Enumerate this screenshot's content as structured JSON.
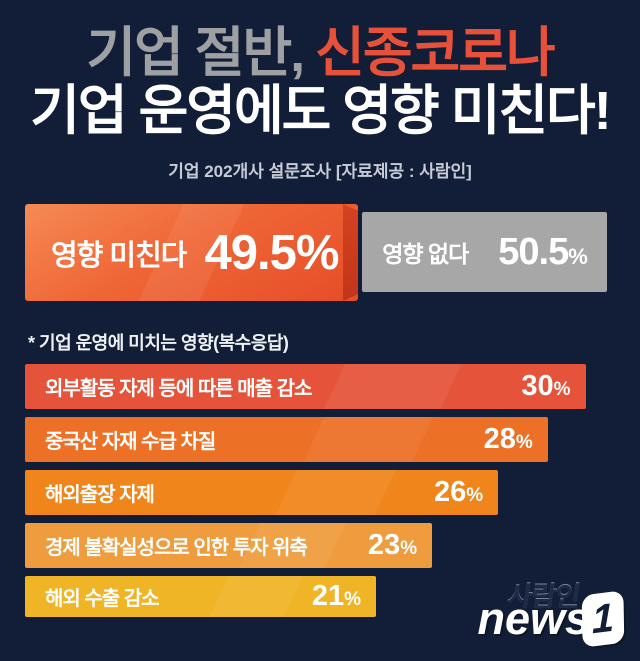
{
  "header": {
    "title_gray": "기업 절반,",
    "title_red": "신종코로나",
    "title_line2": "기업 운영에도 영향 미친다!",
    "subtitle": "기업 202개사 설문조사 [자료제공 : 사람인]"
  },
  "comparison": {
    "affected": {
      "label": "영향 미친다",
      "display_value": "49.5%"
    },
    "not_affected": {
      "label": "영향 없다",
      "display_value": "50.5"
    }
  },
  "note": "* 기업 운영에 미치는 영향(복수응답)",
  "chart_data": {
    "type": "bar",
    "orientation": "horizontal",
    "title": "기업 절반, 신종코로나 기업 운영에도 영향 미친다!",
    "subtitle": "기업 202개사 설문조사 [자료제공 : 사람인]",
    "comparison": {
      "categories": [
        "영향 미친다",
        "영향 없다"
      ],
      "values": [
        49.5,
        50.5
      ]
    },
    "question": "* 기업 운영에 미치는 영향(복수응답)",
    "categories": [
      "외부활동 자제 등에 따른 매출 감소",
      "중국산 자재 수급 차질",
      "해외출장 자제",
      "경제 불확실성으로 인한 투자 위축",
      "해외 수출 감소"
    ],
    "values": [
      30,
      28,
      26,
      23,
      21
    ],
    "unit": "%",
    "xlim": [
      0,
      32
    ],
    "bar_colors": [
      "#e5543a",
      "#ec7026",
      "#f0861b",
      "#ef9c3e",
      "#f0b526"
    ],
    "bar_width_pct": [
      95,
      88.6,
      80.2,
      69,
      59.5
    ],
    "legend": "none",
    "grid": "off"
  },
  "palette": {
    "background": "#121e37",
    "title_gray": "#9ea0a3",
    "accent_red": "#e85139",
    "affected_gradient_start": "#f58a55",
    "affected_gradient_end": "#e64d28",
    "affected_fold": "#c5391c",
    "not_affected_gray": "#a7a7a7",
    "text_white": "#ffffff"
  },
  "footer": {
    "logo_text": "news",
    "logo_number": "1",
    "watermark": "사람인"
  }
}
